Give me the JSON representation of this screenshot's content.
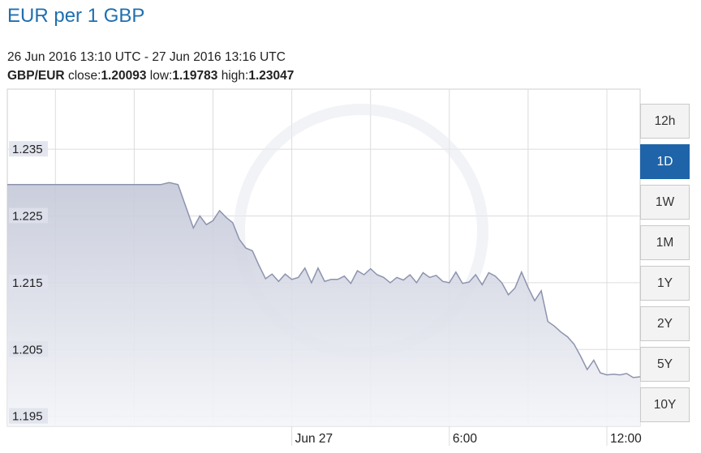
{
  "header": {
    "title": "EUR per 1 GBP",
    "range": "26 Jun 2016 13:10 UTC - 27 Jun 2016 13:16 UTC",
    "pair": "GBP/EUR",
    "close_label": "close:",
    "close_value": "1.20093",
    "low_label": "low:",
    "low_value": "1.19783",
    "high_label": "high:",
    "high_value": "1.23047"
  },
  "range_buttons": [
    {
      "label": "12h",
      "active": false
    },
    {
      "label": "1D",
      "active": true
    },
    {
      "label": "1W",
      "active": false
    },
    {
      "label": "1M",
      "active": false
    },
    {
      "label": "1Y",
      "active": false
    },
    {
      "label": "2Y",
      "active": false
    },
    {
      "label": "5Y",
      "active": false
    },
    {
      "label": "10Y",
      "active": false
    }
  ],
  "colors": {
    "line": "#8d93ae",
    "fill_top": "#c4c8d8",
    "fill_bottom": "#f4f5f9",
    "grid": "#dcdcdc",
    "title": "#1f6fb0",
    "active_button": "#1f64a8"
  },
  "chart_data": {
    "type": "area",
    "title": "EUR per 1 GBP",
    "xlabel": "",
    "ylabel": "",
    "ylim": [
      1.1935,
      1.244
    ],
    "xlim": [
      "2016-06-26 13:10",
      "2016-06-27 13:16"
    ],
    "yticks": [
      1.195,
      1.205,
      1.215,
      1.225,
      1.235
    ],
    "ytick_labels": [
      "1.195",
      "1.205",
      "1.215",
      "1.225",
      "1.235"
    ],
    "xticks": [
      {
        "label": "Jun 27",
        "x": "2016-06-27 00:00"
      },
      {
        "label": "6:00",
        "x": "2016-06-27 06:00"
      },
      {
        "label": "12:00",
        "x": "2016-06-27 12:00"
      }
    ],
    "grid": true,
    "series": [
      {
        "x": [
          "2016-06-26 13:10",
          "2016-06-26 15:00",
          "2016-06-26 17:00",
          "2016-06-26 18:00",
          "2016-06-26 19:00",
          "2016-06-26 19:20",
          "2016-06-26 19:40",
          "2016-06-26 20:00",
          "2016-06-26 20:15",
          "2016-06-26 20:30",
          "2016-06-26 20:45",
          "2016-06-26 21:00",
          "2016-06-26 21:15",
          "2016-06-26 21:30",
          "2016-06-26 21:45",
          "2016-06-26 22:00",
          "2016-06-26 22:15",
          "2016-06-26 22:30",
          "2016-06-26 22:45",
          "2016-06-26 23:00",
          "2016-06-26 23:15",
          "2016-06-26 23:30",
          "2016-06-26 23:45",
          "2016-06-27 00:00",
          "2016-06-27 00:15",
          "2016-06-27 00:30",
          "2016-06-27 00:45",
          "2016-06-27 01:00",
          "2016-06-27 01:15",
          "2016-06-27 01:30",
          "2016-06-27 01:45",
          "2016-06-27 02:00",
          "2016-06-27 02:15",
          "2016-06-27 02:30",
          "2016-06-27 02:45",
          "2016-06-27 03:00",
          "2016-06-27 03:15",
          "2016-06-27 03:30",
          "2016-06-27 03:45",
          "2016-06-27 04:00",
          "2016-06-27 04:15",
          "2016-06-27 04:30",
          "2016-06-27 04:45",
          "2016-06-27 05:00",
          "2016-06-27 05:15",
          "2016-06-27 05:30",
          "2016-06-27 05:45",
          "2016-06-27 06:00",
          "2016-06-27 06:15",
          "2016-06-27 06:30",
          "2016-06-27 06:45",
          "2016-06-27 07:00",
          "2016-06-27 07:15",
          "2016-06-27 07:30",
          "2016-06-27 07:45",
          "2016-06-27 08:00",
          "2016-06-27 08:15",
          "2016-06-27 08:30",
          "2016-06-27 08:45",
          "2016-06-27 09:00",
          "2016-06-27 09:15",
          "2016-06-27 09:30",
          "2016-06-27 09:45",
          "2016-06-27 10:00",
          "2016-06-27 10:15",
          "2016-06-27 10:30",
          "2016-06-27 10:45",
          "2016-06-27 11:00",
          "2016-06-27 11:15",
          "2016-06-27 11:30",
          "2016-06-27 11:45",
          "2016-06-27 12:00",
          "2016-06-27 12:15",
          "2016-06-27 12:30",
          "2016-06-27 12:45",
          "2016-06-27 13:00",
          "2016-06-27 13:16"
        ],
        "values": [
          1.2297,
          1.2297,
          1.2297,
          1.2297,
          1.2297,
          1.23,
          1.2297,
          1.226,
          1.2232,
          1.225,
          1.2237,
          1.2243,
          1.2258,
          1.2248,
          1.224,
          1.2215,
          1.2202,
          1.2198,
          1.2176,
          1.2156,
          1.2163,
          1.2152,
          1.2163,
          1.2155,
          1.2158,
          1.2172,
          1.215,
          1.2172,
          1.2152,
          1.2155,
          1.2155,
          1.216,
          1.2149,
          1.2168,
          1.2162,
          1.2171,
          1.2162,
          1.2158,
          1.215,
          1.2158,
          1.2154,
          1.2162,
          1.215,
          1.2165,
          1.2158,
          1.2161,
          1.2152,
          1.215,
          1.2166,
          1.2149,
          1.2151,
          1.2162,
          1.2147,
          1.2165,
          1.216,
          1.215,
          1.2132,
          1.2142,
          1.2166,
          1.2143,
          1.2123,
          1.2138,
          1.2092,
          1.2085,
          1.2076,
          1.2069,
          1.2058,
          1.204,
          1.202,
          1.2034,
          1.2015,
          1.2012,
          1.2013,
          1.2012,
          1.2014,
          1.2008,
          1.2009
        ]
      }
    ]
  }
}
